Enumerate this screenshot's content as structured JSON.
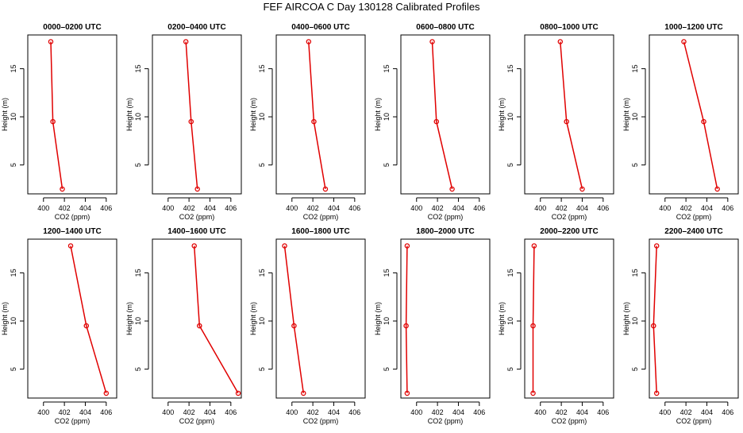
{
  "figure_title": "FEF AIRCOA C  Day 130128  Calibrated Profiles",
  "series_color": "#e00000",
  "chart_data": [
    {
      "type": "line",
      "title": "0000–0200 UTC",
      "xlabel": "CO2 (ppm)",
      "ylabel": "Height (m)",
      "xlim": [
        398.5,
        407
      ],
      "ylim": [
        2,
        18.5
      ],
      "xticks": [
        400,
        402,
        404,
        406
      ],
      "yticks": [
        5,
        10,
        15
      ],
      "x": [
        401.8,
        400.9,
        400.7
      ],
      "y": [
        2.5,
        9.5,
        17.8
      ]
    },
    {
      "type": "line",
      "title": "0200–0400 UTC",
      "xlabel": "CO2 (ppm)",
      "ylabel": "Height (m)",
      "xlim": [
        398.5,
        407
      ],
      "ylim": [
        2,
        18.5
      ],
      "xticks": [
        400,
        402,
        404,
        406
      ],
      "yticks": [
        5,
        10,
        15
      ],
      "x": [
        402.8,
        402.2,
        401.7
      ],
      "y": [
        2.5,
        9.5,
        17.8
      ]
    },
    {
      "type": "line",
      "title": "0400–0600 UTC",
      "xlabel": "CO2 (ppm)",
      "ylabel": "Height (m)",
      "xlim": [
        398.5,
        407
      ],
      "ylim": [
        2,
        18.5
      ],
      "xticks": [
        400,
        402,
        404,
        406
      ],
      "yticks": [
        5,
        10,
        15
      ],
      "x": [
        403.2,
        402.1,
        401.6
      ],
      "y": [
        2.5,
        9.5,
        17.8
      ]
    },
    {
      "type": "line",
      "title": "0600–0800 UTC",
      "xlabel": "CO2 (ppm)",
      "ylabel": "Height (m)",
      "xlim": [
        398.5,
        407
      ],
      "ylim": [
        2,
        18.5
      ],
      "xticks": [
        400,
        402,
        404,
        406
      ],
      "yticks": [
        5,
        10,
        15
      ],
      "x": [
        403.4,
        401.9,
        401.5
      ],
      "y": [
        2.5,
        9.5,
        17.8
      ]
    },
    {
      "type": "line",
      "title": "0800–1000 UTC",
      "xlabel": "CO2 (ppm)",
      "ylabel": "Height (m)",
      "xlim": [
        398.5,
        407
      ],
      "ylim": [
        2,
        18.5
      ],
      "xticks": [
        400,
        402,
        404,
        406
      ],
      "yticks": [
        5,
        10,
        15
      ],
      "x": [
        404.0,
        402.5,
        401.9
      ],
      "y": [
        2.5,
        9.5,
        17.8
      ]
    },
    {
      "type": "line",
      "title": "1000–1200 UTC",
      "xlabel": "CO2 (ppm)",
      "ylabel": "Height (m)",
      "xlim": [
        398.5,
        407
      ],
      "ylim": [
        2,
        18.5
      ],
      "xticks": [
        400,
        402,
        404,
        406
      ],
      "yticks": [
        5,
        10,
        15
      ],
      "x": [
        405.0,
        403.7,
        401.8
      ],
      "y": [
        2.5,
        9.5,
        17.8
      ]
    },
    {
      "type": "line",
      "title": "1200–1400 UTC",
      "xlabel": "CO2 (ppm)",
      "ylabel": "Height (m)",
      "xlim": [
        398.5,
        407
      ],
      "ylim": [
        2,
        18.5
      ],
      "xticks": [
        400,
        402,
        404,
        406
      ],
      "yticks": [
        5,
        10,
        15
      ],
      "x": [
        406.0,
        404.1,
        402.6
      ],
      "y": [
        2.5,
        9.5,
        17.8
      ]
    },
    {
      "type": "line",
      "title": "1400–1600 UTC",
      "xlabel": "CO2 (ppm)",
      "ylabel": "Height (m)",
      "xlim": [
        398.5,
        407
      ],
      "ylim": [
        2,
        18.5
      ],
      "xticks": [
        400,
        402,
        404,
        406
      ],
      "yticks": [
        5,
        10,
        15
      ],
      "x": [
        406.7,
        403.0,
        402.5
      ],
      "y": [
        2.5,
        9.5,
        17.8
      ]
    },
    {
      "type": "line",
      "title": "1600–1800 UTC",
      "xlabel": "CO2 (ppm)",
      "ylabel": "Height (m)",
      "xlim": [
        398.5,
        407
      ],
      "ylim": [
        2,
        18.5
      ],
      "xticks": [
        400,
        402,
        404,
        406
      ],
      "yticks": [
        5,
        10,
        15
      ],
      "x": [
        401.1,
        400.2,
        399.3
      ],
      "y": [
        2.5,
        9.5,
        17.8
      ]
    },
    {
      "type": "line",
      "title": "1800–2000 UTC",
      "xlabel": "CO2 (ppm)",
      "ylabel": "Height (m)",
      "xlim": [
        398.5,
        407
      ],
      "ylim": [
        2,
        18.5
      ],
      "xticks": [
        400,
        402,
        404,
        406
      ],
      "yticks": [
        5,
        10,
        15
      ],
      "x": [
        399.1,
        399.0,
        399.1
      ],
      "y": [
        2.5,
        9.5,
        17.8
      ]
    },
    {
      "type": "line",
      "title": "2000–2200 UTC",
      "xlabel": "CO2 (ppm)",
      "ylabel": "Height (m)",
      "xlim": [
        398.5,
        407
      ],
      "ylim": [
        2,
        18.5
      ],
      "xticks": [
        400,
        402,
        404,
        406
      ],
      "yticks": [
        5,
        10,
        15
      ],
      "x": [
        399.3,
        399.3,
        399.4
      ],
      "y": [
        2.5,
        9.5,
        17.8
      ]
    },
    {
      "type": "line",
      "title": "2200–2400 UTC",
      "xlabel": "CO2 (ppm)",
      "ylabel": "Height (m)",
      "xlim": [
        398.5,
        407
      ],
      "ylim": [
        2,
        18.5
      ],
      "xticks": [
        400,
        402,
        404,
        406
      ],
      "yticks": [
        5,
        10,
        15
      ],
      "x": [
        399.2,
        398.9,
        399.2
      ],
      "y": [
        2.5,
        9.5,
        17.8
      ]
    }
  ]
}
